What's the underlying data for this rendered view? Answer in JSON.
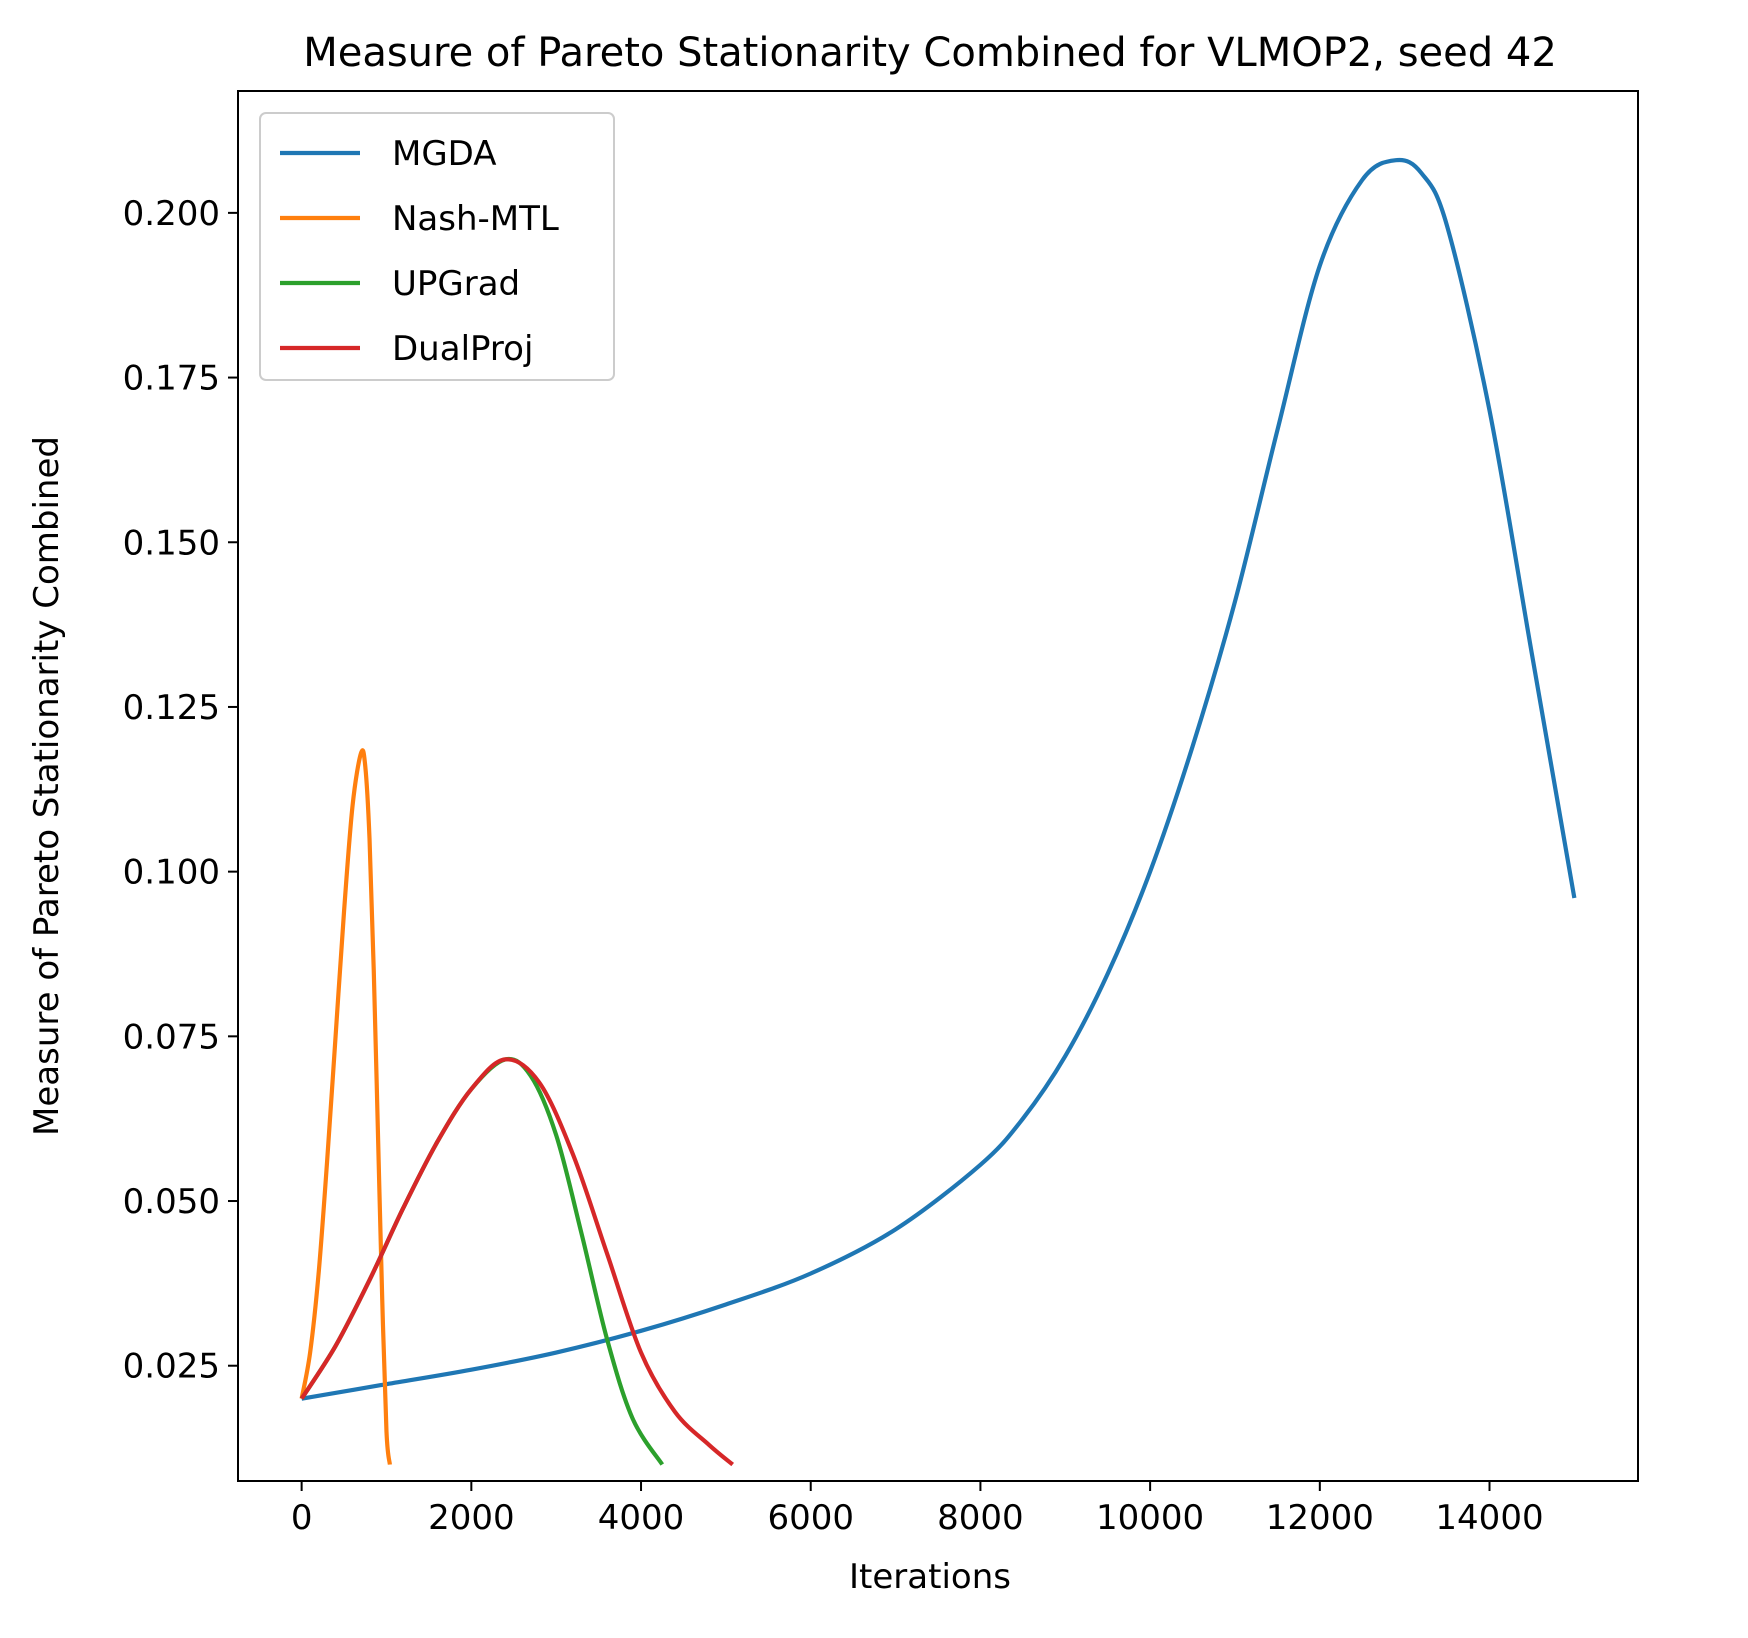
{
  "chart_data": {
    "type": "line",
    "title": "Measure of Pareto Stationarity Combined for VLMOP2, seed 42",
    "xlabel": "Iterations",
    "ylabel": "Measure of Pareto Stationarity Combined",
    "xlim": [
      -750,
      15750
    ],
    "ylim": [
      0.0075,
      0.2185
    ],
    "xticks": [
      0,
      2000,
      4000,
      6000,
      8000,
      10000,
      12000,
      14000
    ],
    "xtick_labels": [
      "0",
      "2000",
      "4000",
      "6000",
      "8000",
      "10000",
      "12000",
      "14000"
    ],
    "yticks": [
      0.025,
      0.05,
      0.075,
      0.1,
      0.125,
      0.15,
      0.175,
      0.2
    ],
    "ytick_labels": [
      "0.025",
      "0.050",
      "0.075",
      "0.100",
      "0.125",
      "0.150",
      "0.175",
      "0.200"
    ],
    "grid": false,
    "legend_position": "upper-left",
    "series": [
      {
        "name": "MGDA",
        "color": "#1f77b4",
        "x": [
          0,
          1000,
          2000,
          3000,
          4000,
          5000,
          6000,
          7000,
          8000,
          8500,
          9000,
          9500,
          10000,
          10500,
          11000,
          11500,
          12000,
          12500,
          12900,
          13200,
          13500,
          14000,
          14500,
          15000
        ],
        "y": [
          0.02,
          0.0222,
          0.0244,
          0.027,
          0.0303,
          0.0343,
          0.039,
          0.0457,
          0.0555,
          0.0625,
          0.072,
          0.0845,
          0.1,
          0.119,
          0.141,
          0.167,
          0.192,
          0.205,
          0.208,
          0.206,
          0.198,
          0.17,
          0.133,
          0.096
        ]
      },
      {
        "name": "Nash-MTL",
        "color": "#ff7f0e",
        "x": [
          0,
          100,
          200,
          300,
          400,
          500,
          600,
          700,
          750,
          800,
          850,
          900,
          950,
          1000,
          1040
        ],
        "y": [
          0.02,
          0.027,
          0.039,
          0.056,
          0.075,
          0.094,
          0.11,
          0.118,
          0.116,
          0.105,
          0.085,
          0.06,
          0.035,
          0.015,
          0.01
        ]
      },
      {
        "name": "UPGrad",
        "color": "#2ca02c",
        "x": [
          0,
          400,
          800,
          1200,
          1600,
          2000,
          2400,
          2700,
          3000,
          3300,
          3600,
          3900,
          4250
        ],
        "y": [
          0.02,
          0.028,
          0.038,
          0.049,
          0.059,
          0.067,
          0.0715,
          0.069,
          0.06,
          0.045,
          0.029,
          0.017,
          0.01
        ]
      },
      {
        "name": "DualProj",
        "color": "#d62728",
        "x": [
          0,
          400,
          800,
          1200,
          1600,
          2000,
          2400,
          2800,
          3200,
          3600,
          4000,
          4400,
          4800,
          5080
        ],
        "y": [
          0.02,
          0.028,
          0.038,
          0.049,
          0.059,
          0.067,
          0.0715,
          0.068,
          0.057,
          0.042,
          0.027,
          0.018,
          0.013,
          0.01
        ]
      }
    ]
  }
}
